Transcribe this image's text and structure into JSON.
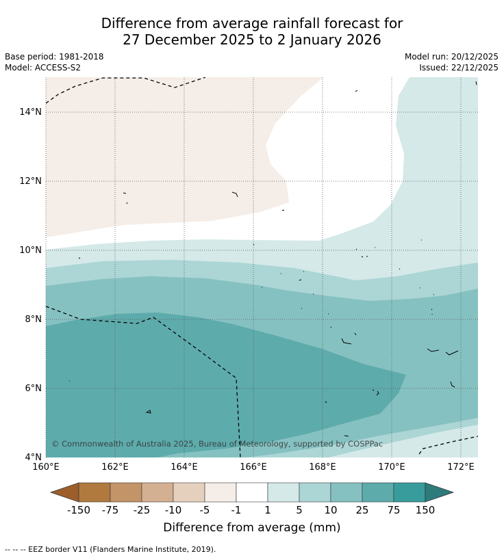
{
  "header": {
    "title_line1": "Difference from average rainfall forecast for",
    "title_line2": "27 December 2025 to 2 January 2026",
    "base_period": "Base period: 1981-2018",
    "model": "Model: ACCESS-S2",
    "model_run": "Model run: 20/12/2025",
    "issued": "Issued: 22/12/2025"
  },
  "map": {
    "lat_labels": [
      "14°N",
      "12°N",
      "10°N",
      "8°N",
      "6°N",
      "4°N"
    ],
    "lon_labels": [
      "160°E",
      "162°E",
      "164°E",
      "166°E",
      "168°E",
      "170°E",
      "172°E"
    ],
    "copyright": "© Commonwealth of Australia 2025, Bureau of Meteorology, supported by COSPPac"
  },
  "colorbar": {
    "title": "Difference from average (mm)",
    "labels": [
      "-150",
      "-75",
      "-25",
      "-10",
      "-5",
      "-1",
      "1",
      "5",
      "10",
      "25",
      "75",
      "150"
    ],
    "colors": [
      "#9c5f2b",
      "#b07a3f",
      "#c29467",
      "#d4b092",
      "#e5d0be",
      "#f5ede7",
      "#ffffff",
      "#d4e9e8",
      "#acd5d5",
      "#86c1c1",
      "#5eabac",
      "#389c9c",
      "#2e7b7b"
    ]
  },
  "footer": {
    "legend": "--  --  -- EEZ border V11 (Flanders Marine Institute, 2019)."
  }
}
